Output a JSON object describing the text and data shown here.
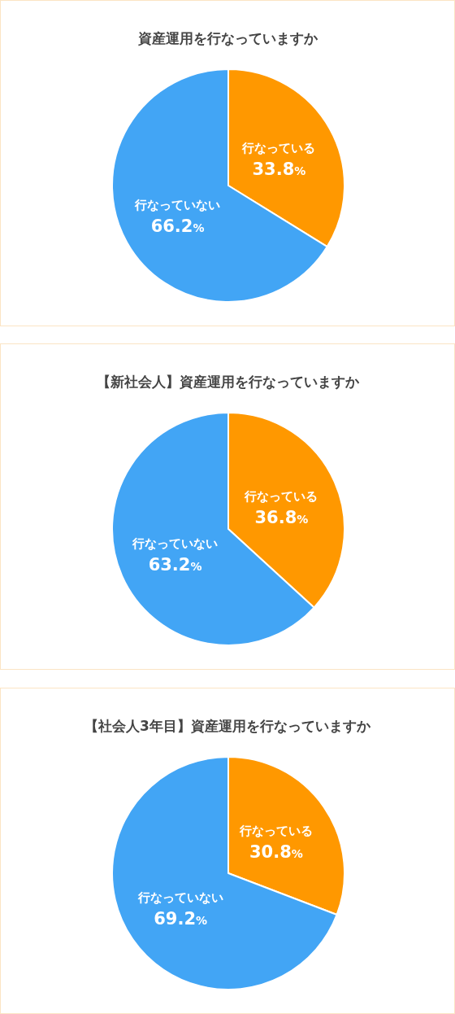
{
  "chart_data": [
    {
      "type": "pie",
      "title": "資産運用を行なっていますか",
      "categories": [
        "行なっている",
        "行なっていない"
      ],
      "values": [
        33.8,
        66.2
      ],
      "colors": [
        "#ff9800",
        "#42a5f5"
      ],
      "value_labels": [
        "33.8%",
        "66.2%"
      ]
    },
    {
      "type": "pie",
      "title": "【新社会人】資産運用を行なっていますか",
      "categories": [
        "行なっている",
        "行なっていない"
      ],
      "values": [
        36.8,
        63.2
      ],
      "colors": [
        "#ff9800",
        "#42a5f5"
      ],
      "value_labels": [
        "36.8%",
        "63.2%"
      ]
    },
    {
      "type": "pie",
      "title": "【社会人3年目】資産運用を行なっていますか",
      "categories": [
        "行なっている",
        "行なっていない"
      ],
      "values": [
        30.8,
        69.2
      ],
      "colors": [
        "#ff9800",
        "#42a5f5"
      ],
      "value_labels": [
        "30.8%",
        "69.2%"
      ]
    }
  ]
}
